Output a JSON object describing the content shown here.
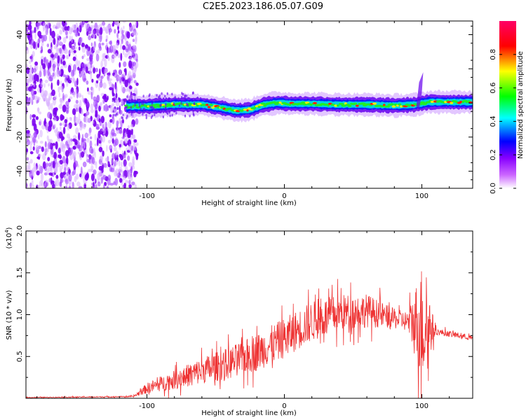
{
  "title": "C2E5.2023.186.05.07.G09",
  "chart_data": [
    {
      "type": "heatmap",
      "name": "spectrogram",
      "xlabel": "Height of straight line (km)",
      "ylabel": "Frequency (Hz)",
      "xlim": [
        -188,
        137
      ],
      "ylim": [
        -50,
        48
      ],
      "xticks": [
        -100,
        0,
        100
      ],
      "xtick_labels": [
        "-100",
        "0",
        "100"
      ],
      "yticks": [
        40,
        20,
        0,
        -20,
        -40
      ],
      "ytick_labels": [
        "40",
        "20",
        "0",
        "-20",
        "-40"
      ],
      "colorbar": {
        "label": "Normalized spectral amplitude",
        "range": [
          0.0,
          1.0
        ],
        "ticks": [
          0.0,
          0.2,
          0.4,
          0.6,
          0.8
        ],
        "tick_labels": [
          "0.0",
          "0.2",
          "0.4",
          "0.6",
          "0.8"
        ],
        "colors": [
          "#ffffff",
          "#8800ff",
          "#0000ff",
          "#00ffff",
          "#00ff00",
          "#ffff00",
          "#ff0000",
          "#ff0088"
        ]
      },
      "noise_region_x": [
        -188,
        -113
      ],
      "ridge": {
        "x": [
          -115,
          -100,
          -80,
          -60,
          -45,
          -35,
          -25,
          -15,
          -5,
          5,
          20,
          40,
          60,
          80,
          95,
          105,
          137
        ],
        "frequency": [
          -2,
          -2,
          -1,
          -1,
          -3,
          -4.5,
          -4,
          -1,
          0,
          -0.5,
          -0.5,
          -1,
          -1,
          -1.5,
          -1,
          0.5,
          0.5
        ]
      }
    },
    {
      "type": "line",
      "name": "snr",
      "xlabel": "Height of straight line (km)",
      "ylabel": "SNR (10 * v/v)",
      "scale_label": "(x10",
      "scale_exp": "4",
      "xlim": [
        -188,
        137
      ],
      "ylim": [
        0,
        2.0
      ],
      "xticks": [
        -100,
        0,
        100
      ],
      "xtick_labels": [
        "-100",
        "0",
        "100"
      ],
      "yticks": [
        0.5,
        1.0,
        1.5,
        2.0
      ],
      "ytick_labels": [
        "0.5",
        "1.0",
        "1.5",
        "2.0"
      ],
      "line_color": "#ee3333",
      "envelope": {
        "x": [
          -188,
          -110,
          -100,
          -80,
          -60,
          -40,
          -20,
          0,
          20,
          40,
          60,
          80,
          90,
          100,
          105,
          110,
          137
        ],
        "mean": [
          0.01,
          0.02,
          0.12,
          0.22,
          0.33,
          0.42,
          0.55,
          0.72,
          0.92,
          1.02,
          1.05,
          0.95,
          0.92,
          0.9,
          0.85,
          0.8,
          0.72
        ],
        "spread": [
          0.005,
          0.01,
          0.08,
          0.14,
          0.2,
          0.24,
          0.28,
          0.3,
          0.3,
          0.28,
          0.25,
          0.15,
          0.15,
          0.9,
          0.5,
          0.05,
          0.04
        ]
      }
    }
  ]
}
